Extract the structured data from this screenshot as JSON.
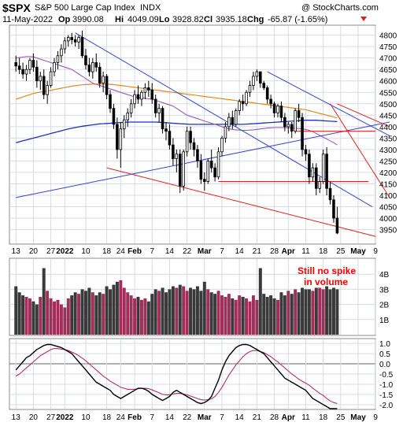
{
  "header": {
    "ticker": "$SPX",
    "name": "S&P 500 Large Cap Index",
    "exchange": "INDX",
    "watermark": "@ StockCharts.com",
    "date": "11-May-2022",
    "open_label": "Op",
    "open": "3990.08",
    "high_label": "Hi",
    "high": "4049.09",
    "low_label": "Lo",
    "low": "3928.82",
    "close_label": "Cl",
    "close": "3935.18",
    "change_label": "Chg",
    "change": "-65.87 (-1.65%)"
  },
  "annotation": {
    "line1": "Still no spike",
    "line2": "in volume"
  },
  "colors": {
    "up": "#ffffff",
    "down": "#000000",
    "candle_outline": "#000000",
    "ma_short": "#9b59b6",
    "ma_mid": "#e08a1e",
    "ma_long": "#1f2fbf",
    "trend_blue": "#3344cc",
    "trend_red": "#e02020",
    "vol_up": "#a0305a",
    "vol_down": "#3a3a3a",
    "osc_line": "#000000",
    "osc_signal": "#b0306a",
    "annotation": "#ff0000",
    "grid": "#d6dbe6"
  },
  "chart_data": [
    {
      "type": "candlestick",
      "panel": "price",
      "ylim": [
        3890,
        4840
      ],
      "y_ticks": [
        "3950",
        "4000",
        "4050",
        "4100",
        "4150",
        "4200",
        "4250",
        "4300",
        "4350",
        "4400",
        "4450",
        "4500",
        "4550",
        "4600",
        "4650",
        "4700",
        "4750",
        "4800"
      ],
      "x_ticks": [
        "13",
        "20",
        "27",
        "2022",
        "10",
        "18",
        "24",
        "Feb",
        "7",
        "14",
        "22",
        "Mar",
        "7",
        "14",
        "21",
        "28",
        "Apr",
        "11",
        "18",
        "25",
        "May",
        "9"
      ],
      "x_tick_index": [
        0,
        5,
        10,
        14,
        20,
        26,
        30,
        34,
        39,
        44,
        49,
        54,
        59,
        64,
        69,
        74,
        78,
        83,
        88,
        93,
        98,
        103
      ],
      "ohlc": [
        [
          4680,
          4710,
          4640,
          4665
        ],
        [
          4665,
          4700,
          4630,
          4650
        ],
        [
          4650,
          4680,
          4610,
          4630
        ],
        [
          4630,
          4670,
          4600,
          4650
        ],
        [
          4650,
          4700,
          4630,
          4690
        ],
        [
          4690,
          4720,
          4640,
          4660
        ],
        [
          4660,
          4690,
          4570,
          4600
        ],
        [
          4600,
          4640,
          4560,
          4620
        ],
        [
          4620,
          4650,
          4520,
          4540
        ],
        [
          4540,
          4600,
          4500,
          4580
        ],
        [
          4580,
          4660,
          4570,
          4640
        ],
        [
          4640,
          4700,
          4620,
          4680
        ],
        [
          4680,
          4730,
          4650,
          4710
        ],
        [
          4710,
          4760,
          4680,
          4740
        ],
        [
          4740,
          4790,
          4720,
          4775
        ],
        [
          4775,
          4800,
          4750,
          4790
        ],
        [
          4790,
          4810,
          4760,
          4780
        ],
        [
          4780,
          4800,
          4750,
          4770
        ],
        [
          4770,
          4800,
          4740,
          4790
        ],
        [
          4790,
          4820,
          4700,
          4710
        ],
        [
          4710,
          4740,
          4650,
          4670
        ],
        [
          4670,
          4700,
          4620,
          4640
        ],
        [
          4640,
          4700,
          4610,
          4680
        ],
        [
          4680,
          4720,
          4640,
          4660
        ],
        [
          4660,
          4680,
          4570,
          4590
        ],
        [
          4590,
          4640,
          4550,
          4620
        ],
        [
          4620,
          4630,
          4520,
          4540
        ],
        [
          4540,
          4560,
          4460,
          4480
        ],
        [
          4480,
          4500,
          4390,
          4410
        ],
        [
          4410,
          4440,
          4260,
          4300
        ],
        [
          4300,
          4420,
          4220,
          4390
        ],
        [
          4390,
          4450,
          4350,
          4430
        ],
        [
          4430,
          4480,
          4400,
          4460
        ],
        [
          4460,
          4520,
          4440,
          4500
        ],
        [
          4500,
          4560,
          4480,
          4540
        ],
        [
          4540,
          4580,
          4500,
          4520
        ],
        [
          4520,
          4560,
          4490,
          4550
        ],
        [
          4550,
          4590,
          4520,
          4570
        ],
        [
          4570,
          4600,
          4530,
          4560
        ],
        [
          4560,
          4590,
          4500,
          4520
        ],
        [
          4520,
          4540,
          4440,
          4460
        ],
        [
          4460,
          4500,
          4420,
          4480
        ],
        [
          4480,
          4490,
          4370,
          4390
        ],
        [
          4390,
          4420,
          4340,
          4380
        ],
        [
          4380,
          4410,
          4300,
          4320
        ],
        [
          4320,
          4350,
          4230,
          4260
        ],
        [
          4260,
          4300,
          4200,
          4280
        ],
        [
          4280,
          4300,
          4110,
          4140
        ],
        [
          4140,
          4300,
          4120,
          4290
        ],
        [
          4290,
          4400,
          4270,
          4380
        ],
        [
          4380,
          4400,
          4300,
          4330
        ],
        [
          4330,
          4350,
          4270,
          4300
        ],
        [
          4300,
          4320,
          4220,
          4250
        ],
        [
          4250,
          4280,
          4150,
          4170
        ],
        [
          4170,
          4200,
          4120,
          4160
        ],
        [
          4160,
          4260,
          4150,
          4250
        ],
        [
          4250,
          4300,
          4200,
          4220
        ],
        [
          4220,
          4240,
          4160,
          4180
        ],
        [
          4180,
          4310,
          4170,
          4290
        ],
        [
          4290,
          4360,
          4270,
          4350
        ],
        [
          4350,
          4420,
          4330,
          4400
        ],
        [
          4400,
          4460,
          4380,
          4440
        ],
        [
          4440,
          4470,
          4390,
          4410
        ],
        [
          4410,
          4480,
          4400,
          4470
        ],
        [
          4470,
          4520,
          4450,
          4510
        ],
        [
          4510,
          4540,
          4470,
          4500
        ],
        [
          4500,
          4560,
          4490,
          4550
        ],
        [
          4550,
          4600,
          4530,
          4580
        ],
        [
          4580,
          4640,
          4560,
          4620
        ],
        [
          4620,
          4650,
          4600,
          4640
        ],
        [
          4640,
          4640,
          4570,
          4590
        ],
        [
          4590,
          4600,
          4560,
          4570
        ],
        [
          4570,
          4580,
          4500,
          4520
        ],
        [
          4520,
          4540,
          4480,
          4500
        ],
        [
          4500,
          4510,
          4440,
          4460
        ],
        [
          4460,
          4500,
          4440,
          4490
        ],
        [
          4490,
          4510,
          4420,
          4440
        ],
        [
          4440,
          4460,
          4380,
          4400
        ],
        [
          4400,
          4420,
          4370,
          4410
        ],
        [
          4410,
          4420,
          4350,
          4380
        ],
        [
          4380,
          4480,
          4370,
          4470
        ],
        [
          4470,
          4500,
          4420,
          4440
        ],
        [
          4440,
          4460,
          4270,
          4300
        ],
        [
          4300,
          4320,
          4250,
          4280
        ],
        [
          4280,
          4300,
          4150,
          4180
        ],
        [
          4180,
          4240,
          4160,
          4220
        ],
        [
          4220,
          4240,
          4100,
          4130
        ],
        [
          4130,
          4180,
          4110,
          4160
        ],
        [
          4160,
          4300,
          4150,
          4280
        ],
        [
          4280,
          4310,
          4100,
          4130
        ],
        [
          4130,
          4160,
          4060,
          4080
        ],
        [
          4080,
          4100,
          3980,
          4000
        ],
        [
          4000,
          4050,
          3930,
          3935
        ]
      ],
      "sma_50": [
        4700,
        4702,
        4704,
        4706,
        4706,
        4705,
        4700,
        4695,
        4690,
        4685,
        4680,
        4675,
        4670,
        4665,
        4660,
        4655,
        4650,
        4640,
        4630,
        4620,
        4610,
        4600,
        4590,
        4585,
        4580,
        4575,
        4570,
        4565,
        4560,
        4555,
        4550,
        4545,
        4540,
        4535,
        4530,
        4528,
        4526,
        4524,
        4522,
        4520,
        4515,
        4510,
        4505,
        4500,
        4495,
        4490,
        4480,
        4470,
        4460,
        4450,
        4445,
        4440,
        4435,
        4430,
        4425,
        4420,
        4415,
        4410,
        4405,
        4400,
        4395,
        4390,
        4388,
        4386,
        4385,
        4384,
        4384,
        4385,
        4386,
        4388,
        4390,
        4392,
        4394,
        4395,
        4396,
        4396,
        4396,
        4396,
        4395,
        4394,
        4393,
        4392,
        4390,
        4388,
        4384,
        4378,
        4370,
        4362,
        4354,
        4346,
        4338,
        4330,
        4320
      ],
      "sma_150": [
        4520,
        4525,
        4530,
        4535,
        4540,
        4545,
        4548,
        4551,
        4553,
        4556,
        4559,
        4562,
        4565,
        4568,
        4571,
        4574,
        4577,
        4579,
        4581,
        4583,
        4584,
        4585,
        4586,
        4586,
        4586,
        4586,
        4586,
        4585,
        4584,
        4582,
        4580,
        4578,
        4576,
        4574,
        4572,
        4570,
        4568,
        4566,
        4564,
        4562,
        4560,
        4558,
        4556,
        4554,
        4552,
        4550,
        4548,
        4546,
        4544,
        4542,
        4540,
        4538,
        4536,
        4534,
        4532,
        4530,
        4528,
        4526,
        4524,
        4522,
        4520,
        4518,
        4516,
        4514,
        4512,
        4510,
        4508,
        4506,
        4504,
        4502,
        4500,
        4498,
        4496,
        4494,
        4492,
        4490,
        4488,
        4486,
        4484,
        4482,
        4480,
        4478,
        4476,
        4474,
        4470,
        4466,
        4462,
        4458,
        4454,
        4450,
        4446,
        4442,
        4438
      ],
      "sma_200": [
        4330,
        4334,
        4338,
        4342,
        4346,
        4350,
        4354,
        4358,
        4362,
        4366,
        4370,
        4374,
        4378,
        4382,
        4386,
        4390,
        4393,
        4396,
        4399,
        4402,
        4404,
        4406,
        4408,
        4410,
        4412,
        4413,
        4414,
        4415,
        4416,
        4417,
        4418,
        4419,
        4420,
        4420,
        4420,
        4420,
        4420,
        4420,
        4420,
        4420,
        4420,
        4419,
        4418,
        4417,
        4416,
        4415,
        4414,
        4413,
        4412,
        4411,
        4410,
        4410,
        4410,
        4410,
        4410,
        4410,
        4410,
        4410,
        4410,
        4410,
        4410,
        4410,
        4410,
        4410,
        4410,
        4410,
        4411,
        4412,
        4413,
        4414,
        4415,
        4416,
        4417,
        4418,
        4419,
        4420,
        4421,
        4422,
        4423,
        4424,
        4425,
        4426,
        4427,
        4428,
        4428,
        4428,
        4428,
        4427,
        4426,
        4425,
        4424,
        4423,
        4422
      ],
      "trendlines": [
        {
          "color": "blue",
          "from": [
            17,
            4810
          ],
          "to": [
            102,
            4050
          ]
        },
        {
          "color": "blue",
          "from": [
            0,
            4090
          ],
          "to": [
            107,
            4420
          ]
        },
        {
          "color": "blue",
          "from": [
            72,
            4640
          ],
          "to": [
            107,
            4360
          ]
        },
        {
          "color": "red",
          "from": [
            26,
            4220
          ],
          "to": [
            103,
            3920
          ]
        },
        {
          "color": "red",
          "from": [
            90,
            4500
          ],
          "to": [
            107,
            4090
          ]
        },
        {
          "color": "red",
          "from": [
            92,
            4500
          ],
          "to": [
            107,
            4400
          ]
        },
        {
          "color": "red",
          "from": [
            58,
            4160
          ],
          "to": [
            101,
            4160
          ]
        },
        {
          "color": "red",
          "from": [
            80,
            4380
          ],
          "to": [
            103,
            4380
          ]
        }
      ]
    },
    {
      "type": "bar",
      "panel": "volume",
      "y_ticks": [
        "1B",
        "2B",
        "3B",
        "4B"
      ],
      "ylim": [
        0,
        5
      ],
      "values": [
        3.2,
        2.8,
        2.6,
        2.5,
        2.4,
        2.2,
        2.0,
        2.5,
        4.4,
        2.9,
        2.4,
        2.2,
        2.3,
        2.0,
        1.8,
        2.4,
        2.6,
        2.8,
        2.7,
        3.0,
        2.9,
        3.1,
        2.8,
        2.6,
        2.8,
        2.7,
        3.2,
        3.0,
        3.3,
        3.5,
        3.6,
        3.1,
        2.8,
        2.6,
        2.4,
        2.5,
        2.3,
        2.4,
        2.2,
        2.7,
        3.0,
        2.9,
        3.1,
        2.8,
        3.0,
        3.2,
        3.1,
        3.3,
        3.2,
        2.9,
        3.1,
        3.0,
        3.2,
        2.9,
        3.5,
        3.0,
        2.8,
        2.7,
        2.9,
        2.6,
        2.5,
        2.7,
        2.4,
        2.3,
        2.6,
        2.5,
        2.4,
        2.2,
        2.6,
        2.3,
        4.4,
        2.7,
        2.5,
        2.6,
        2.4,
        2.3,
        2.8,
        2.6,
        2.9,
        2.7,
        3.0,
        2.8,
        3.1,
        3.0,
        3.0,
        2.9,
        3.1,
        3.1,
        3.0,
        3.2,
        3.0,
        3.1,
        3.0
      ]
    },
    {
      "type": "line",
      "panel": "oscillator",
      "ylim": [
        -2.2,
        1.2
      ],
      "y_ticks": [
        "-2.0",
        "-1.5",
        "-1.0",
        "-0.5",
        "0.0",
        "0.5",
        "1.0"
      ],
      "line": [
        -0.3,
        -0.1,
        0.1,
        0.3,
        0.4,
        0.55,
        0.7,
        0.8,
        0.9,
        0.95,
        0.95,
        0.9,
        0.85,
        0.8,
        0.7,
        0.6,
        0.5,
        0.3,
        0.1,
        -0.1,
        -0.3,
        -0.5,
        -0.7,
        -0.9,
        -1.0,
        -1.1,
        -1.2,
        -1.3,
        -1.5,
        -1.6,
        -1.7,
        -1.6,
        -1.5,
        -1.4,
        -1.3,
        -1.2,
        -1.2,
        -1.25,
        -1.35,
        -1.5,
        -1.6,
        -1.7,
        -1.8,
        -1.7,
        -1.6,
        -1.4,
        -1.3,
        -1.4,
        -1.5,
        -1.6,
        -1.7,
        -1.8,
        -1.9,
        -1.95,
        -1.9,
        -1.8,
        -1.6,
        -1.2,
        -0.8,
        -0.3,
        0.1,
        0.4,
        0.6,
        0.8,
        0.9,
        0.95,
        0.95,
        0.9,
        0.8,
        0.7,
        0.6,
        0.5,
        0.3,
        0.1,
        -0.1,
        -0.3,
        -0.5,
        -0.7,
        -0.8,
        -0.9,
        -1.0,
        -1.1,
        -1.2,
        -1.3,
        -1.5,
        -1.7,
        -1.8,
        -1.9,
        -2.0,
        -2.1,
        -2.2,
        -2.2,
        -2.2
      ],
      "signal": [
        -0.6,
        -0.5,
        -0.35,
        -0.2,
        -0.05,
        0.1,
        0.25,
        0.4,
        0.5,
        0.6,
        0.7,
        0.75,
        0.75,
        0.72,
        0.7,
        0.65,
        0.58,
        0.5,
        0.4,
        0.28,
        0.15,
        0.0,
        -0.15,
        -0.3,
        -0.45,
        -0.6,
        -0.72,
        -0.85,
        -0.95,
        -1.05,
        -1.15,
        -1.2,
        -1.25,
        -1.25,
        -1.25,
        -1.22,
        -1.2,
        -1.2,
        -1.22,
        -1.28,
        -1.35,
        -1.42,
        -1.5,
        -1.52,
        -1.52,
        -1.48,
        -1.45,
        -1.45,
        -1.48,
        -1.52,
        -1.58,
        -1.64,
        -1.7,
        -1.76,
        -1.78,
        -1.76,
        -1.72,
        -1.6,
        -1.4,
        -1.15,
        -0.85,
        -0.55,
        -0.3,
        -0.05,
        0.15,
        0.35,
        0.5,
        0.6,
        0.65,
        0.65,
        0.6,
        0.55,
        0.45,
        0.35,
        0.22,
        0.1,
        -0.05,
        -0.2,
        -0.35,
        -0.5,
        -0.62,
        -0.75,
        -0.85,
        -0.95,
        -1.05,
        -1.2,
        -1.32,
        -1.45,
        -1.55,
        -1.7,
        -1.82,
        -1.9,
        -1.95
      ]
    }
  ]
}
